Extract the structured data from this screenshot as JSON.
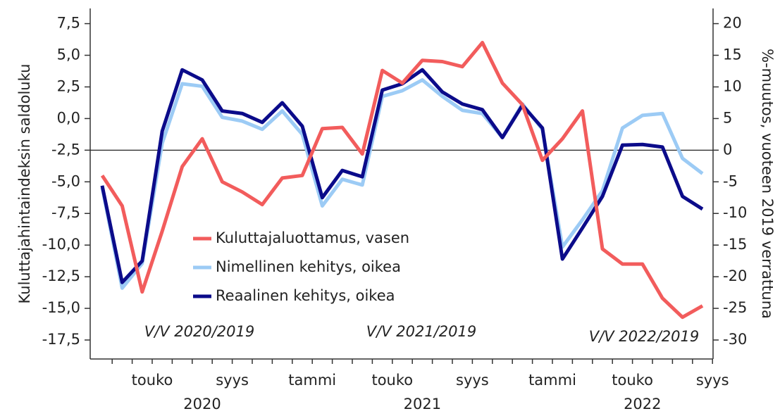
{
  "chart_data": {
    "type": "line",
    "y_label": "Kuluttajahintaindeksin saldoluku",
    "y2_label": "%-muutos, vuoteen 2019 verrattuna",
    "categories": [
      null,
      null,
      "touko",
      null,
      null,
      null,
      "syys",
      null,
      null,
      null,
      "tammi",
      null,
      null,
      null,
      "touko",
      null,
      null,
      null,
      "syys",
      null,
      null,
      null,
      "tammi",
      null,
      null,
      null,
      "touko",
      null,
      null,
      null,
      "syys"
    ],
    "x_groups": [
      "2020",
      "2021",
      "2022"
    ],
    "annotations": [
      "V/V 2020/2019",
      "V/V 2021/2019",
      "V/V 2022/2019"
    ],
    "series": [
      {
        "name": "Kuluttajaluottamus, vasen",
        "color": "#f25c5c",
        "axis": "y",
        "values": [
          -4.5,
          -6.9,
          -13.7,
          -8.9,
          -3.8,
          -1.6,
          -5.0,
          -5.8,
          -6.8,
          -4.7,
          -4.5,
          -0.8,
          -0.7,
          -2.8,
          3.8,
          2.8,
          4.6,
          4.5,
          4.1,
          6.0,
          2.8,
          1.1,
          -3.3,
          -1.6,
          0.6,
          -10.3,
          -11.5,
          -11.5,
          -14.2,
          -15.7,
          -14.8
        ]
      },
      {
        "name": "Nimellinen kehitys, oikea",
        "color": "#9ccbf5",
        "axis": "y2",
        "values": [
          -5.9,
          -21.8,
          -17.9,
          1.1,
          10.5,
          10.1,
          5.2,
          4.6,
          3.3,
          6.2,
          2.5,
          -8.8,
          -4.6,
          -5.5,
          8.5,
          9.4,
          11.1,
          8.5,
          6.3,
          5.8,
          2.0,
          7.3,
          3.3,
          -15.3,
          -11.0,
          -6.4,
          3.5,
          5.5,
          5.8,
          -1.3,
          -3.7
        ]
      },
      {
        "name": "Reaalinen kehitys, oikea",
        "color": "#0b0b8a",
        "axis": "y2",
        "values": [
          -5.6,
          -20.9,
          -17.5,
          3.0,
          12.7,
          11.1,
          6.2,
          5.8,
          4.4,
          7.5,
          3.8,
          -7.5,
          -3.2,
          -4.2,
          9.5,
          10.5,
          12.7,
          9.2,
          7.3,
          6.4,
          2.0,
          7.1,
          3.5,
          -17.2,
          -12.3,
          -7.3,
          0.8,
          0.9,
          0.5,
          -7.3,
          -9.3
        ]
      }
    ],
    "ylim": [
      -19.0,
      8.7
    ],
    "yticks": [
      {
        "value": 7.5,
        "label": "7,5"
      },
      {
        "value": 5,
        "label": "5,0"
      },
      {
        "value": 2.5,
        "label": "2,5"
      },
      {
        "value": 0,
        "label": "0,0"
      },
      {
        "value": -2.5,
        "label": "-2,5"
      },
      {
        "value": -5,
        "label": "-5,0"
      },
      {
        "value": -7.5,
        "label": "-7,5"
      },
      {
        "value": -10,
        "label": "-10,0"
      },
      {
        "value": -12.5,
        "label": "-12,5"
      },
      {
        "value": -15,
        "label": "-15,0"
      },
      {
        "value": -17.5,
        "label": "-17,5"
      }
    ],
    "y2lim": [
      -33.0,
      22.4
    ],
    "y2ticks": [
      20,
      15,
      10,
      5,
      0,
      -5,
      -10,
      -15,
      -20,
      -25,
      -30
    ],
    "reference_line_y2": 0
  }
}
